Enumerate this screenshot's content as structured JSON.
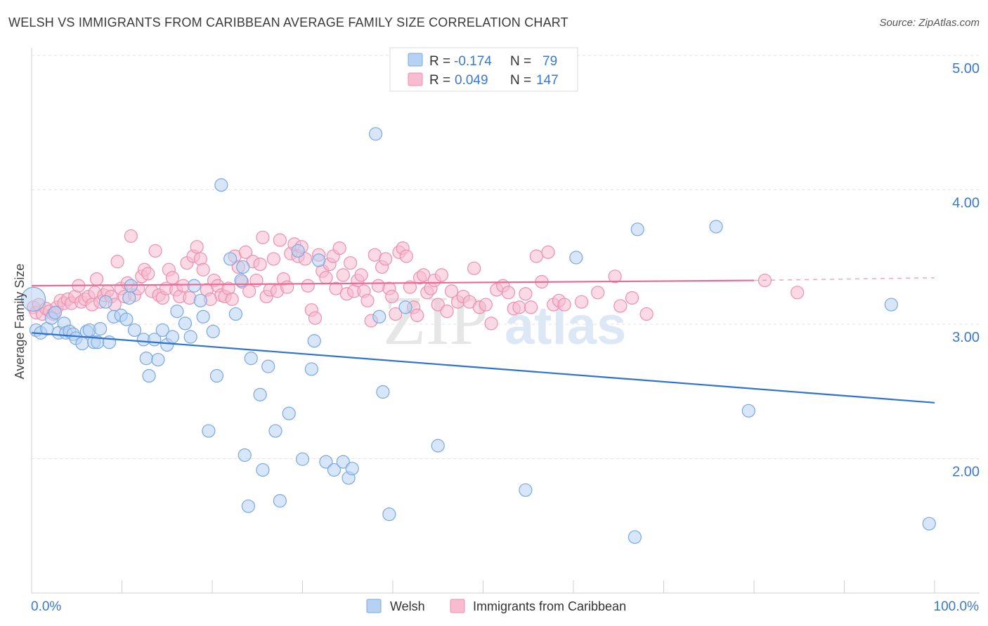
{
  "header": {
    "title": "WELSH VS IMMIGRANTS FROM CARIBBEAN AVERAGE FAMILY SIZE CORRELATION CHART",
    "source": "Source: ZipAtlas.com"
  },
  "watermark": {
    "zip": "ZIP",
    "atlas": "atlas"
  },
  "stats": {
    "welsh": {
      "r_label": "R =",
      "r": "-0.174",
      "n_label": "N =",
      "n": "79"
    },
    "caribbean": {
      "r_label": "R =",
      "r": "0.049",
      "n_label": "N =",
      "n": "147"
    }
  },
  "colors": {
    "welsh_fill": "#b7d1f3",
    "welsh_stroke": "#7aa8e0",
    "welsh_line": "#2f72d0",
    "carib_fill": "#f7bcd0",
    "carib_stroke": "#ec8fb0",
    "carib_line": "#e86b97",
    "value_blue": "#3a78d0",
    "tick_blue": "#3a78d0"
  },
  "chart_data": {
    "type": "scatter",
    "xlabel": "",
    "ylabel": "Average Family Size",
    "xlim": [
      0,
      100
    ],
    "ylim": [
      1.0,
      5.2
    ],
    "x_tick_labels": [
      "0.0%",
      "100.0%"
    ],
    "y_ticks": [
      2.0,
      3.0,
      4.0,
      5.0
    ],
    "y_tick_labels": [
      "2.00",
      "3.00",
      "4.00",
      "5.00"
    ],
    "grid": true,
    "legend_position": "bottom",
    "series": [
      {
        "name": "Welsh",
        "trend": {
          "x": [
            0,
            100
          ],
          "y": [
            3.03,
            2.51
          ]
        },
        "points": [
          [
            0.2,
            3.28
          ],
          [
            0.5,
            3.05
          ],
          [
            1,
            3.03
          ],
          [
            1.7,
            3.06
          ],
          [
            2.2,
            3.14
          ],
          [
            2.6,
            3.18
          ],
          [
            3,
            3.03
          ],
          [
            3.6,
            3.1
          ],
          [
            3.8,
            3.03
          ],
          [
            4.2,
            3.04
          ],
          [
            4.6,
            3.02
          ],
          [
            4.9,
            2.99
          ],
          [
            5.6,
            2.95
          ],
          [
            6.1,
            3.04
          ],
          [
            6.4,
            3.05
          ],
          [
            6.9,
            2.96
          ],
          [
            7.3,
            2.96
          ],
          [
            7.6,
            3.06
          ],
          [
            8.2,
            3.26
          ],
          [
            8.6,
            2.96
          ],
          [
            9.1,
            3.15
          ],
          [
            9.9,
            3.16
          ],
          [
            10.5,
            3.13
          ],
          [
            10.8,
            3.29
          ],
          [
            11,
            3.38
          ],
          [
            11.4,
            3.05
          ],
          [
            12.4,
            2.98
          ],
          [
            12.7,
            2.84
          ],
          [
            13,
            2.71
          ],
          [
            13.6,
            2.98
          ],
          [
            14,
            2.83
          ],
          [
            14.5,
            3.05
          ],
          [
            15,
            2.94
          ],
          [
            15.6,
            3.0
          ],
          [
            16.1,
            3.19
          ],
          [
            17,
            3.1
          ],
          [
            17.6,
            3.0
          ],
          [
            18,
            3.38
          ],
          [
            18.7,
            3.27
          ],
          [
            19,
            3.15
          ],
          [
            19.6,
            2.3
          ],
          [
            20.1,
            3.04
          ],
          [
            20.5,
            2.71
          ],
          [
            21,
            4.13
          ],
          [
            22,
            3.58
          ],
          [
            22.6,
            3.17
          ],
          [
            23.2,
            3.42
          ],
          [
            23.4,
            3.52
          ],
          [
            23.6,
            2.12
          ],
          [
            24,
            1.74
          ],
          [
            24.3,
            2.84
          ],
          [
            25.3,
            2.57
          ],
          [
            25.6,
            2.01
          ],
          [
            26.2,
            2.78
          ],
          [
            27,
            2.3
          ],
          [
            27.5,
            1.78
          ],
          [
            28.5,
            2.43
          ],
          [
            29.5,
            3.64
          ],
          [
            30,
            2.09
          ],
          [
            31,
            2.76
          ],
          [
            31.3,
            2.97
          ],
          [
            31.8,
            3.57
          ],
          [
            32.6,
            2.07
          ],
          [
            33.5,
            2.01
          ],
          [
            34.5,
            2.07
          ],
          [
            35.1,
            1.95
          ],
          [
            35.5,
            2.02
          ],
          [
            38.1,
            4.51
          ],
          [
            38.5,
            3.15
          ],
          [
            38.9,
            2.59
          ],
          [
            39.6,
            1.68
          ],
          [
            41.4,
            3.22
          ],
          [
            45,
            2.19
          ],
          [
            47.4,
            5.0
          ],
          [
            54.7,
            1.86
          ],
          [
            60.3,
            3.59
          ],
          [
            66.8,
            1.51
          ],
          [
            67.1,
            3.8
          ],
          [
            75.8,
            3.82
          ],
          [
            79.4,
            2.45
          ],
          [
            95.2,
            3.24
          ],
          [
            99.4,
            1.61
          ]
        ]
      },
      {
        "name": "Immigrants from Caribbean",
        "trend": {
          "x": [
            0,
            80
          ],
          "y": [
            3.38,
            3.42
          ]
        },
        "trend_dashed": {
          "x": [
            80,
            100
          ],
          "y": [
            3.42,
            3.44
          ]
        },
        "points": [
          [
            0.2,
            3.22
          ],
          [
            0.5,
            3.18
          ],
          [
            0.8,
            3.24
          ],
          [
            1.2,
            3.17
          ],
          [
            1.6,
            3.21
          ],
          [
            2,
            3.19
          ],
          [
            2.4,
            3.17
          ],
          [
            2.8,
            3.22
          ],
          [
            3.2,
            3.27
          ],
          [
            3.6,
            3.25
          ],
          [
            4,
            3.28
          ],
          [
            4.4,
            3.25
          ],
          [
            4.8,
            3.3
          ],
          [
            5.2,
            3.38
          ],
          [
            5.5,
            3.26
          ],
          [
            5.9,
            3.28
          ],
          [
            6.3,
            3.3
          ],
          [
            6.7,
            3.24
          ],
          [
            7,
            3.33
          ],
          [
            7.2,
            3.43
          ],
          [
            7.6,
            3.26
          ],
          [
            8,
            3.31
          ],
          [
            8.4,
            3.34
          ],
          [
            8.8,
            3.3
          ],
          [
            9.2,
            3.24
          ],
          [
            9.5,
            3.56
          ],
          [
            9.9,
            3.36
          ],
          [
            10.3,
            3.3
          ],
          [
            10.6,
            3.4
          ],
          [
            11,
            3.75
          ],
          [
            11.4,
            3.31
          ],
          [
            11.8,
            3.36
          ],
          [
            12.2,
            3.45
          ],
          [
            12.5,
            3.5
          ],
          [
            12.9,
            3.47
          ],
          [
            13.3,
            3.34
          ],
          [
            13.7,
            3.64
          ],
          [
            14.1,
            3.31
          ],
          [
            14.5,
            3.29
          ],
          [
            14.9,
            3.36
          ],
          [
            15.2,
            3.5
          ],
          [
            15.6,
            3.44
          ],
          [
            16,
            3.35
          ],
          [
            16.4,
            3.3
          ],
          [
            16.8,
            3.38
          ],
          [
            17.2,
            3.55
          ],
          [
            17.5,
            3.29
          ],
          [
            17.9,
            3.6
          ],
          [
            18.3,
            3.67
          ],
          [
            18.7,
            3.58
          ],
          [
            19,
            3.5
          ],
          [
            19.4,
            3.35
          ],
          [
            19.8,
            3.28
          ],
          [
            20.2,
            3.42
          ],
          [
            20.6,
            3.38
          ],
          [
            21,
            3.31
          ],
          [
            21.4,
            3.3
          ],
          [
            21.8,
            3.36
          ],
          [
            22.2,
            3.28
          ],
          [
            22.5,
            3.6
          ],
          [
            22.9,
            3.52
          ],
          [
            23.3,
            3.41
          ],
          [
            23.7,
            3.63
          ],
          [
            24.1,
            3.34
          ],
          [
            24.5,
            3.56
          ],
          [
            24.9,
            3.42
          ],
          [
            25.3,
            3.54
          ],
          [
            25.6,
            3.74
          ],
          [
            26,
            3.3
          ],
          [
            26.4,
            3.35
          ],
          [
            26.8,
            3.58
          ],
          [
            27.2,
            3.34
          ],
          [
            27.5,
            3.72
          ],
          [
            27.9,
            3.43
          ],
          [
            28.3,
            3.37
          ],
          [
            28.7,
            3.62
          ],
          [
            29.1,
            3.69
          ],
          [
            29.5,
            3.6
          ],
          [
            29.9,
            3.67
          ],
          [
            30.3,
            3.58
          ],
          [
            30.6,
            3.38
          ],
          [
            31,
            3.2
          ],
          [
            31.4,
            3.14
          ],
          [
            31.8,
            3.61
          ],
          [
            32.2,
            3.49
          ],
          [
            32.6,
            3.44
          ],
          [
            33,
            3.54
          ],
          [
            33.4,
            3.6
          ],
          [
            33.7,
            3.36
          ],
          [
            34.1,
            3.66
          ],
          [
            34.5,
            3.46
          ],
          [
            34.9,
            3.32
          ],
          [
            35.3,
            3.55
          ],
          [
            35.7,
            3.34
          ],
          [
            36.1,
            3.42
          ],
          [
            36.5,
            3.46
          ],
          [
            36.8,
            3.34
          ],
          [
            37.2,
            3.27
          ],
          [
            37.6,
            3.12
          ],
          [
            38,
            3.61
          ],
          [
            38.4,
            3.38
          ],
          [
            38.8,
            3.52
          ],
          [
            39.2,
            3.58
          ],
          [
            39.6,
            3.36
          ],
          [
            39.9,
            3.3
          ],
          [
            40.3,
            3.17
          ],
          [
            40.7,
            3.63
          ],
          [
            41.1,
            3.66
          ],
          [
            41.5,
            3.6
          ],
          [
            41.9,
            3.37
          ],
          [
            42.3,
            3.22
          ],
          [
            42.7,
            3.16
          ],
          [
            43,
            3.44
          ],
          [
            43.4,
            3.46
          ],
          [
            43.8,
            3.33
          ],
          [
            44.2,
            3.36
          ],
          [
            44.6,
            3.42
          ],
          [
            45,
            3.24
          ],
          [
            45.4,
            3.46
          ],
          [
            46,
            3.19
          ],
          [
            46.5,
            3.34
          ],
          [
            47.2,
            3.26
          ],
          [
            47.8,
            3.3
          ],
          [
            48.5,
            3.26
          ],
          [
            49,
            3.51
          ],
          [
            49.6,
            3.22
          ],
          [
            50.3,
            3.24
          ],
          [
            50.9,
            3.1
          ],
          [
            51.5,
            3.35
          ],
          [
            52.2,
            3.38
          ],
          [
            52.8,
            3.33
          ],
          [
            53.4,
            3.21
          ],
          [
            54,
            3.22
          ],
          [
            54.7,
            3.32
          ],
          [
            55.3,
            3.22
          ],
          [
            55.9,
            3.6
          ],
          [
            56.5,
            3.41
          ],
          [
            57.2,
            3.63
          ],
          [
            57.8,
            3.24
          ],
          [
            58.4,
            3.27
          ],
          [
            59,
            3.24
          ],
          [
            60.9,
            3.26
          ],
          [
            62.7,
            3.33
          ],
          [
            64.6,
            3.45
          ],
          [
            65.2,
            3.23
          ],
          [
            66.5,
            3.29
          ],
          [
            68.1,
            3.17
          ],
          [
            81.2,
            3.42
          ],
          [
            84.8,
            3.33
          ]
        ]
      }
    ]
  }
}
